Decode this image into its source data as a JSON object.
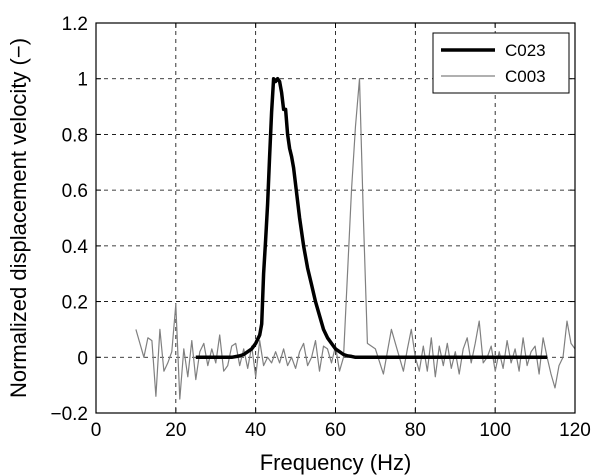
{
  "chart_data": {
    "type": "line",
    "xlabel": "Frequency (Hz)",
    "ylabel": "Normalized displacement velocity (−)",
    "xlim": [
      0,
      120
    ],
    "ylim": [
      -0.2,
      1.2
    ],
    "x_ticks": [
      0,
      20,
      40,
      60,
      80,
      100,
      120
    ],
    "x_tick_labels": [
      "0",
      "20",
      "40",
      "60",
      "80",
      "100",
      "120"
    ],
    "y_ticks": [
      -0.2,
      0,
      0.2,
      0.4,
      0.6,
      0.8,
      1,
      1.2
    ],
    "y_tick_labels": [
      "−0.2",
      "0",
      "0.2",
      "0.4",
      "0.6",
      "0.8",
      "1",
      "1.2"
    ],
    "grid": true,
    "legend_position": "top-right",
    "series": [
      {
        "name": "C023",
        "color": "#000000",
        "style": "thick",
        "x": [
          25,
          26,
          28,
          30,
          32,
          34,
          36,
          37,
          38,
          39,
          40,
          41,
          41.5,
          42,
          42.5,
          43,
          43.5,
          44,
          44.5,
          45,
          45.5,
          46,
          46.5,
          47,
          47.5,
          48,
          48.5,
          49,
          49.5,
          50,
          51,
          52,
          53,
          54,
          55,
          56,
          57,
          58,
          59,
          60,
          61,
          62,
          63,
          64,
          65,
          66,
          68,
          70,
          75,
          80,
          90,
          100,
          110,
          113
        ],
        "y": [
          0,
          0,
          0,
          0,
          0,
          0,
          0.005,
          0.01,
          0.02,
          0.03,
          0.05,
          0.08,
          0.12,
          0.3,
          0.42,
          0.55,
          0.72,
          0.88,
          1.0,
          0.99,
          1.0,
          0.99,
          0.95,
          0.89,
          0.89,
          0.8,
          0.75,
          0.72,
          0.68,
          0.62,
          0.5,
          0.4,
          0.32,
          0.26,
          0.2,
          0.15,
          0.1,
          0.07,
          0.05,
          0.03,
          0.02,
          0.01,
          0.005,
          0.003,
          0,
          0,
          0,
          0,
          0,
          0,
          0,
          0,
          0,
          0
        ]
      },
      {
        "name": "C003",
        "color": "#808080",
        "style": "thin",
        "x": [
          10,
          12,
          13,
          14,
          15,
          16,
          17,
          18,
          19,
          20,
          21,
          22,
          23,
          24,
          25,
          26,
          27,
          28,
          29,
          30,
          31,
          32,
          33,
          34,
          35,
          36,
          37,
          38,
          39,
          40,
          41,
          42,
          43,
          44,
          45,
          46,
          47,
          48,
          49,
          50,
          51,
          52,
          53,
          54,
          55,
          56,
          57,
          58,
          59,
          60,
          61,
          62,
          63,
          64,
          65,
          66,
          67,
          68,
          70,
          72,
          74,
          75,
          76,
          77,
          78,
          79,
          80,
          81,
          82,
          83,
          84,
          85,
          86,
          87,
          88,
          89,
          90,
          91,
          92,
          93,
          94,
          95,
          96,
          97,
          98,
          99,
          100,
          101,
          102,
          103,
          104,
          105,
          106,
          107,
          108,
          109,
          110,
          111,
          112,
          113,
          114,
          115,
          116,
          117,
          118,
          119,
          120
        ],
        "y": [
          0.1,
          0.0,
          0.07,
          0.06,
          -0.14,
          0.1,
          -0.05,
          -0.02,
          0.02,
          0.19,
          -0.15,
          0.03,
          -0.07,
          0.06,
          -0.08,
          0.02,
          0.05,
          -0.03,
          0.03,
          -0.02,
          0.08,
          -0.05,
          -0.03,
          0.04,
          0.05,
          -0.03,
          0.03,
          -0.04,
          0.04,
          -0.07,
          0.06,
          -0.03,
          0.0,
          -0.02,
          0.02,
          -0.02,
          0.03,
          -0.03,
          0.0,
          -0.04,
          0.02,
          0.05,
          -0.03,
          0.0,
          0.06,
          -0.05,
          0.04,
          0.03,
          -0.02,
          0.04,
          -0.05,
          0.0,
          0.3,
          0.6,
          0.83,
          1.0,
          0.5,
          0.05,
          0.03,
          -0.06,
          0.1,
          0.05,
          0.0,
          -0.05,
          0.03,
          0.1,
          0.0,
          -0.05,
          0.04,
          -0.05,
          0.07,
          -0.07,
          0.04,
          -0.03,
          0.05,
          -0.04,
          0.02,
          -0.06,
          0.03,
          0.07,
          -0.02,
          0.05,
          0.13,
          -0.02,
          0.0,
          0.04,
          -0.05,
          0.02,
          -0.04,
          0.06,
          -0.02,
          0.03,
          -0.05,
          0.07,
          -0.03,
          0.02,
          0.04,
          -0.06,
          0.07,
          0.0,
          -0.06,
          -0.11,
          -0.03,
          0.0,
          0.13,
          0.05,
          0.03
        ]
      }
    ]
  }
}
